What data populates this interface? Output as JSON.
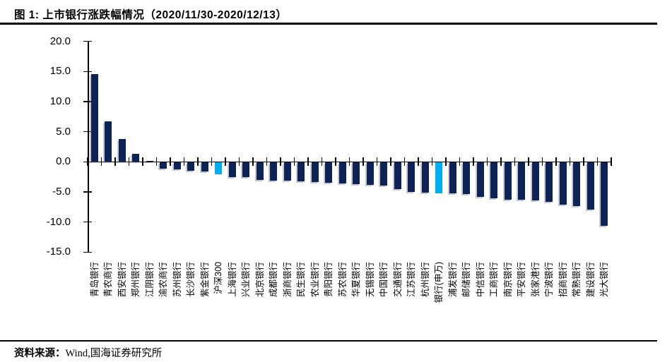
{
  "header": {
    "title": "图 1:  上市银行涨跌幅情况（2020/11/30-2020/12/13）"
  },
  "footer": {
    "source_label": "资料来源：",
    "source_text": "Wind,国海证券研究所"
  },
  "chart_data": {
    "type": "bar",
    "title": "上市银行涨跌幅情况（2020/11/30-2020/12/13）",
    "categories": [
      "青岛银行",
      "青农商行",
      "西安银行",
      "郑州银行",
      "江阴银行",
      "渝农商行",
      "苏州银行",
      "长沙银行",
      "紫金银行",
      "沪深300",
      "上海银行",
      "兴业银行",
      "北京银行",
      "成都银行",
      "浙商银行",
      "民生银行",
      "农业银行",
      "贵阳银行",
      "苏农银行",
      "华夏银行",
      "无锡银行",
      "中国银行",
      "交通银行",
      "江苏银行",
      "杭州银行",
      "银行(申万)",
      "浦发银行",
      "邮储银行",
      "中信银行",
      "工商银行",
      "南京银行",
      "平安银行",
      "张家港行",
      "宁波银行",
      "招商银行",
      "常熟银行",
      "建设银行",
      "光大银行"
    ],
    "values": [
      14.6,
      6.7,
      3.8,
      1.3,
      0.2,
      -1.0,
      -1.2,
      -1.4,
      -1.5,
      -2.0,
      -2.4,
      -2.5,
      -2.9,
      -3.0,
      -3.1,
      -3.2,
      -3.3,
      -3.4,
      -3.5,
      -3.6,
      -3.7,
      -3.9,
      -4.5,
      -4.9,
      -5.0,
      -5.1,
      -5.2,
      -5.3,
      -5.7,
      -6.0,
      -6.2,
      -6.2,
      -6.3,
      -6.5,
      -7.0,
      -7.3,
      -7.8,
      -10.5
    ],
    "highlight_categories": [
      "沪深300",
      "银行(申万)"
    ],
    "highlight_indices": [
      9,
      25
    ],
    "colors": {
      "bar_default": "#0D2355",
      "bar_highlight": "#00AEEF",
      "axis": "#000000",
      "text": "#000000"
    },
    "ylim": [
      -15,
      20
    ],
    "yticks": [
      20,
      15,
      10,
      5,
      0,
      -5,
      -10,
      -15
    ],
    "ytick_labels": [
      "20.0",
      "15.0",
      "10.0",
      "5.0",
      "0.0",
      "-5.0",
      "-10.0",
      "-15.0"
    ],
    "xlabel": "",
    "ylabel": "",
    "grid": false,
    "legend": false,
    "unit": "%"
  }
}
